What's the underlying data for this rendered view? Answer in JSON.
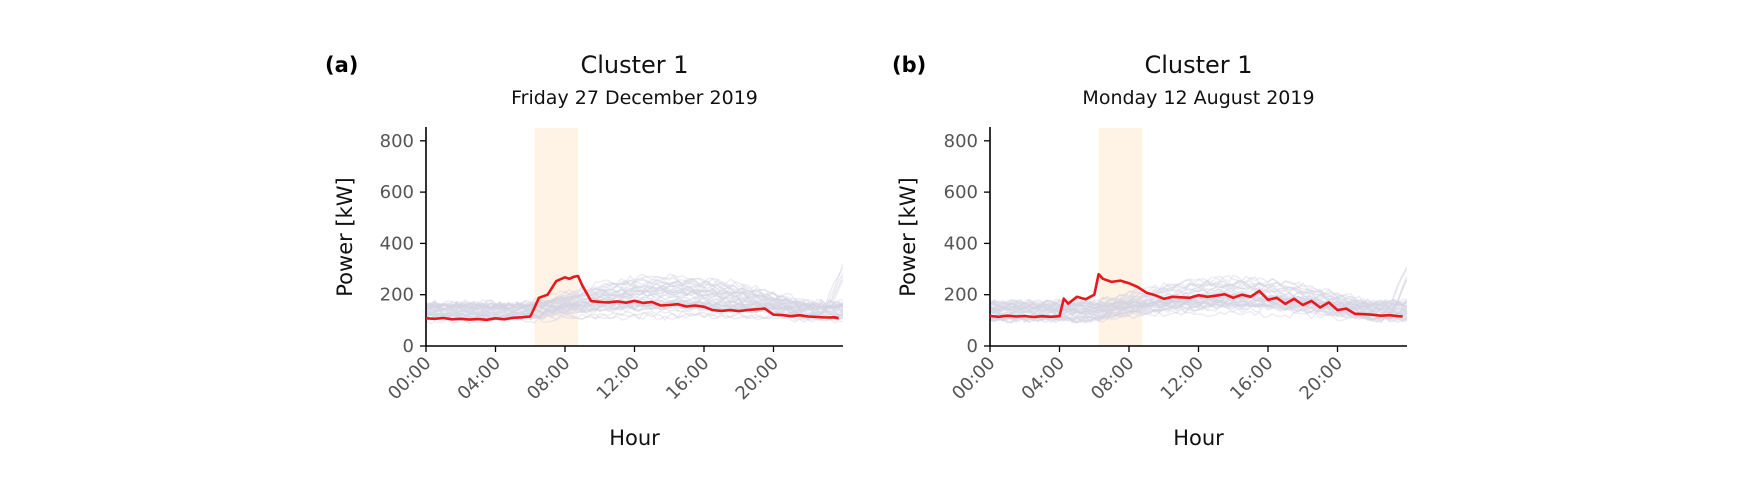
{
  "chart_data": [
    {
      "type": "line",
      "panel_label": "(a)",
      "title": "Cluster 1",
      "subtitle": "Friday 27 December 2019",
      "xlabel": "Hour",
      "ylabel": "Power [kW]",
      "ylim": [
        0,
        850
      ],
      "yticks": [
        "0",
        "200",
        "400",
        "600",
        "800"
      ],
      "xticks": [
        "00:00",
        "04:00",
        "08:00",
        "12:00",
        "16:00",
        "20:00"
      ],
      "highlight_hours": [
        6.25,
        8.75
      ],
      "highlight_color": "#fff3e6",
      "background_color": "#d3d3e3",
      "series": [
        {
          "color": "#e8191c",
          "x": [
            0,
            0.5,
            1,
            1.5,
            2,
            2.5,
            3,
            3.5,
            4,
            4.5,
            5,
            5.5,
            6,
            6.25,
            6.5,
            7,
            7.5,
            8,
            8.25,
            8.5,
            8.75,
            9,
            9.5,
            10,
            10.5,
            11,
            11.5,
            12,
            12.5,
            13,
            13.5,
            14,
            14.5,
            15,
            15.5,
            16,
            16.5,
            17,
            17.5,
            18,
            18.5,
            19,
            19.5,
            20,
            20.5,
            21,
            21.5,
            22,
            22.5,
            23,
            23.5,
            23.75
          ],
          "y": [
            108,
            106,
            109,
            104,
            106,
            103,
            105,
            102,
            108,
            104,
            110,
            112,
            115,
            150,
            188,
            200,
            253,
            268,
            262,
            270,
            273,
            235,
            175,
            172,
            170,
            174,
            169,
            176,
            168,
            172,
            158,
            160,
            163,
            154,
            158,
            153,
            140,
            137,
            140,
            136,
            140,
            143,
            146,
            122,
            121,
            116,
            120,
            115,
            113,
            111,
            112,
            108
          ]
        }
      ]
    },
    {
      "type": "line",
      "panel_label": "(b)",
      "title": "Cluster 1",
      "subtitle": "Monday 12 August 2019",
      "xlabel": "Hour",
      "ylabel": "Power [kW]",
      "ylim": [
        0,
        850
      ],
      "yticks": [
        "0",
        "200",
        "400",
        "600",
        "800"
      ],
      "xticks": [
        "00:00",
        "04:00",
        "08:00",
        "12:00",
        "16:00",
        "20:00"
      ],
      "highlight_hours": [
        6.25,
        8.75
      ],
      "highlight_color": "#fff3e6",
      "background_color": "#d3d3e3",
      "series": [
        {
          "color": "#e8191c",
          "x": [
            0,
            0.5,
            1,
            1.5,
            2,
            2.5,
            3,
            3.5,
            4,
            4.25,
            4.5,
            5,
            5.5,
            6,
            6.25,
            6.5,
            7,
            7.5,
            8,
            8.5,
            9,
            9.5,
            10,
            10.5,
            11,
            11.5,
            12,
            12.5,
            13,
            13.5,
            14,
            14.5,
            15,
            15.5,
            16,
            16.5,
            17,
            17.5,
            18,
            18.5,
            19,
            19.5,
            20,
            20.5,
            21,
            21.5,
            22,
            22.5,
            23,
            23.5,
            23.75
          ],
          "y": [
            117,
            114,
            118,
            115,
            117,
            113,
            116,
            114,
            116,
            185,
            165,
            192,
            182,
            200,
            280,
            262,
            250,
            255,
            245,
            230,
            208,
            198,
            184,
            192,
            190,
            188,
            198,
            192,
            196,
            202,
            188,
            200,
            192,
            215,
            180,
            188,
            164,
            184,
            160,
            176,
            150,
            170,
            140,
            146,
            126,
            124,
            122,
            118,
            120,
            116,
            115
          ]
        }
      ]
    }
  ]
}
